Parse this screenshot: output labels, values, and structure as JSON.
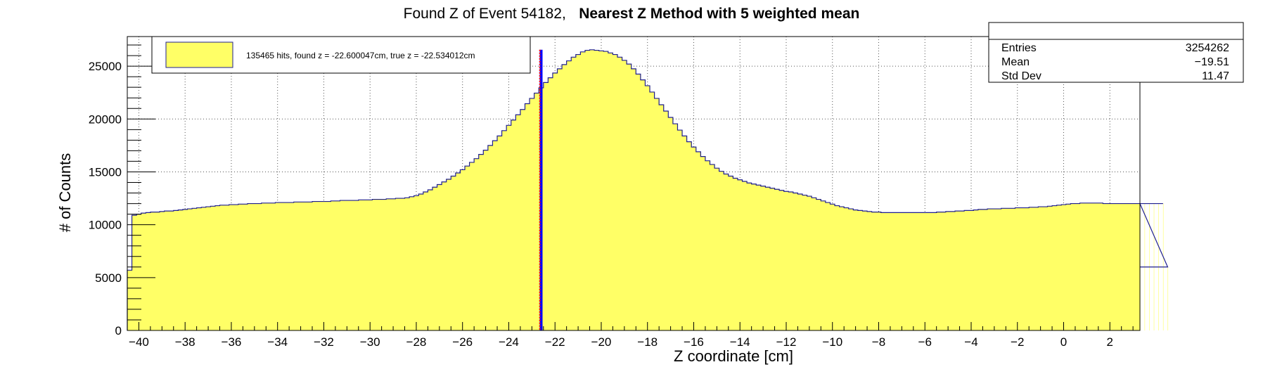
{
  "chart_data": {
    "type": "histogram",
    "title_prefix": "Found Z of Event 54182,",
    "title_bold": "Nearest Z Method with 5 weighted mean",
    "xlabel": "Z coordinate [cm]",
    "ylabel": "# of Counts",
    "xlim": [
      -40.5,
      3.3
    ],
    "ylim": [
      0,
      27800
    ],
    "xticks": [
      -40,
      -38,
      -36,
      -34,
      -32,
      -30,
      -28,
      -26,
      -24,
      -22,
      -20,
      -18,
      -16,
      -14,
      -12,
      -10,
      -8,
      -6,
      -4,
      -2,
      0,
      2
    ],
    "yticks": [
      0,
      5000,
      10000,
      15000,
      20000,
      25000
    ],
    "grid": true,
    "fill_color": "#ffff66",
    "line_color": "#1f1f8f",
    "bin_width": 0.2,
    "first_bin_low": -40.5,
    "bin_values": [
      5700,
      10900,
      11000,
      11100,
      11150,
      11200,
      11200,
      11250,
      11300,
      11300,
      11350,
      11400,
      11450,
      11500,
      11550,
      11600,
      11650,
      11700,
      11750,
      11800,
      11850,
      11850,
      11900,
      11900,
      11950,
      11950,
      12000,
      12000,
      12000,
      12050,
      12050,
      12050,
      12100,
      12100,
      12100,
      12100,
      12150,
      12150,
      12150,
      12150,
      12200,
      12200,
      12200,
      12200,
      12250,
      12250,
      12300,
      12300,
      12300,
      12300,
      12350,
      12350,
      12350,
      12400,
      12400,
      12400,
      12450,
      12450,
      12500,
      12500,
      12550,
      12650,
      12750,
      12900,
      13100,
      13300,
      13550,
      13800,
      14050,
      14300,
      14600,
      14900,
      15200,
      15550,
      15900,
      16250,
      16650,
      17050,
      17500,
      17950,
      18400,
      18900,
      19400,
      19900,
      20400,
      20900,
      21450,
      21950,
      22450,
      22950,
      23450,
      23900,
      24350,
      24750,
      25150,
      25500,
      25850,
      26100,
      26350,
      26500,
      26550,
      26500,
      26450,
      26400,
      26250,
      26100,
      25850,
      25550,
      25200,
      24750,
      24250,
      23700,
      23150,
      22550,
      21950,
      21350,
      20750,
      20150,
      19550,
      18950,
      18400,
      17850,
      17350,
      16900,
      16450,
      16050,
      15700,
      15350,
      15050,
      14800,
      14600,
      14400,
      14250,
      14100,
      13950,
      13850,
      13750,
      13650,
      13550,
      13450,
      13350,
      13250,
      13150,
      13100,
      13000,
      12900,
      12800,
      12700,
      12550,
      12400,
      12250,
      12100,
      11950,
      11800,
      11700,
      11600,
      11500,
      11400,
      11350,
      11300,
      11250,
      11200,
      11200,
      11150,
      11150,
      11150,
      11150,
      11150,
      11150,
      11150,
      11150,
      11150,
      11150,
      11150,
      11150,
      11200,
      11200,
      11250,
      11250,
      11300,
      11300,
      11350,
      11350,
      11400,
      11450,
      11450,
      11500,
      11500,
      11500,
      11550,
      11550,
      11550,
      11600,
      11600,
      11600,
      11650,
      11650,
      11700,
      11700,
      11750,
      11800,
      11850,
      11900,
      11950,
      12000,
      12000,
      12050,
      12050,
      12050,
      12050,
      12050,
      12000,
      12000,
      12000,
      12000,
      12000,
      12000,
      12000,
      12000,
      12000,
      12000,
      12000,
      12000,
      12000,
      12000,
      6000
    ],
    "found_z": -22.600047,
    "true_z": -22.534012,
    "legend": {
      "label": "135465 hits, found z = -22.600047cm, true z = -22.534012cm",
      "placement": "top-left"
    },
    "stats": {
      "placement": "top-right",
      "rows": [
        {
          "name": "Entries",
          "value": "3254262"
        },
        {
          "name": "Mean",
          "value": "−19.51"
        },
        {
          "name": "Std Dev",
          "value": "11.47"
        }
      ]
    }
  }
}
